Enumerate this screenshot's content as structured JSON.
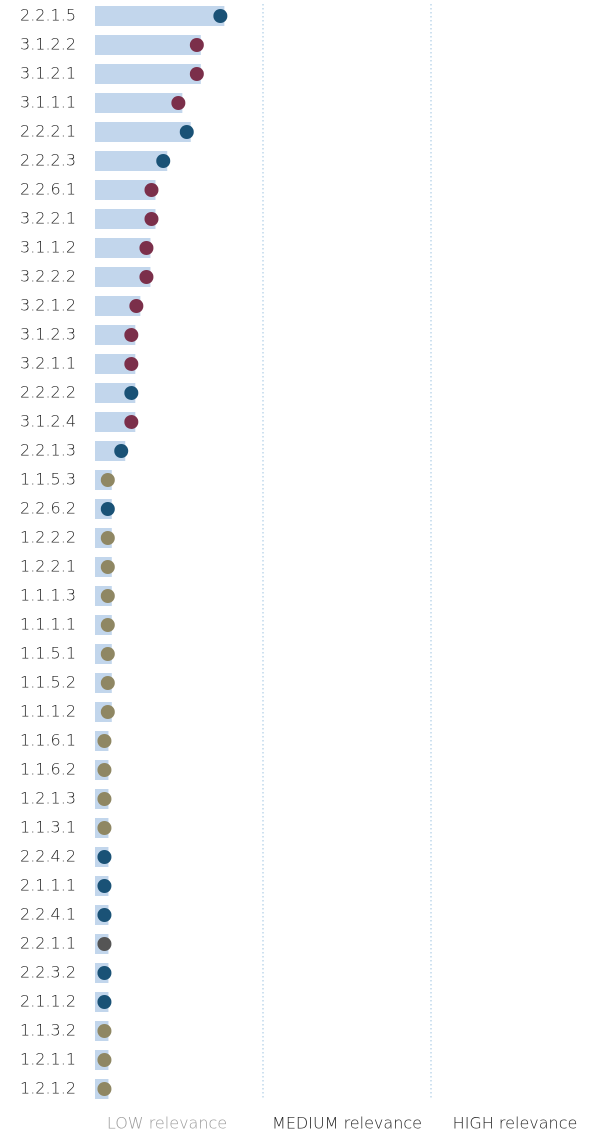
{
  "chart_data": {
    "type": "barh",
    "categories": [
      "2.2.1.5",
      "3.1.2.2",
      "3.1.2.1",
      "3.1.1.1",
      "2.2.2.1",
      "2.2.2.3",
      "2.2.6.1",
      "3.2.2.1",
      "3.1.1.2",
      "3.2.2.2",
      "3.2.1.2",
      "3.1.2.3",
      "3.2.1.1",
      "2.2.2.2",
      "3.1.2.4",
      "2.2.1.3",
      "1.1.5.3",
      "2.2.6.2",
      "1.2.2.2",
      "1.2.2.1",
      "1.1.1.3",
      "1.1.1.1",
      "1.1.5.1",
      "1.1.5.2",
      "1.1.1.2",
      "1.1.6.1",
      "1.1.6.2",
      "1.2.1.3",
      "1.1.3.1",
      "2.2.4.2",
      "2.1.1.1",
      "2.2.4.1",
      "2.2.1.1",
      "2.2.3.2",
      "2.1.1.2",
      "1.1.3.2",
      "1.2.1.1",
      "1.2.1.2"
    ],
    "values": [
      0.77,
      0.63,
      0.63,
      0.52,
      0.57,
      0.43,
      0.36,
      0.36,
      0.33,
      0.33,
      0.27,
      0.24,
      0.24,
      0.24,
      0.24,
      0.18,
      0.1,
      0.1,
      0.1,
      0.1,
      0.1,
      0.1,
      0.1,
      0.1,
      0.1,
      0.08,
      0.08,
      0.08,
      0.08,
      0.08,
      0.08,
      0.08,
      0.08,
      0.08,
      0.08,
      0.08,
      0.08,
      0.08
    ],
    "color": "#c2d6ec",
    "icon_colors": [
      "#1a5276",
      "#7b2f4a",
      "#7b2f4a",
      "#7b2f4a",
      "#1a5276",
      "#1a5276",
      "#7b2f4a",
      "#7b2f4a",
      "#7b2f4a",
      "#7b2f4a",
      "#7b2f4a",
      "#7b2f4a",
      "#7b2f4a",
      "#1a5276",
      "#7b2f4a",
      "#1a5276",
      "#8f8763",
      "#1a5276",
      "#8f8763",
      "#8f8763",
      "#8f8763",
      "#8f8763",
      "#8f8763",
      "#8f8763",
      "#8f8763",
      "#8f8763",
      "#8f8763",
      "#8f8763",
      "#8f8763",
      "#1a5276",
      "#1a5276",
      "#1a5276",
      "#555555",
      "#1a5276",
      "#1a5276",
      "#8f8763",
      "#8f8763",
      "#8f8763"
    ],
    "xlim": [
      0,
      3
    ],
    "xticks": [
      1,
      2
    ],
    "grid": true,
    "relevance_labels": [
      "LOW relevance",
      "MEDIUM relevance",
      "HIGH relevance"
    ]
  }
}
